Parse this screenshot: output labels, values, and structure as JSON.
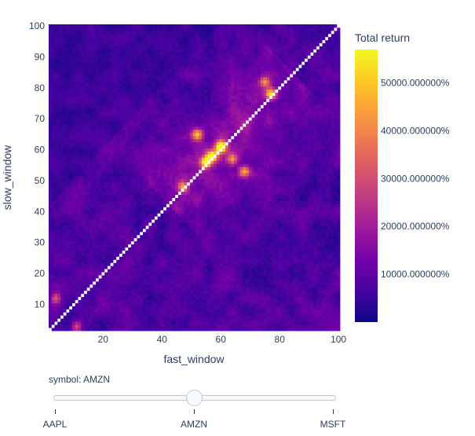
{
  "chart_data": {
    "type": "heatmap",
    "x_label": "fast_window",
    "y_label": "slow_window",
    "x_range": [
      2,
      100
    ],
    "y_range": [
      2,
      100
    ],
    "x_ticks": [
      20,
      40,
      60,
      80,
      100
    ],
    "y_ticks": [
      10,
      20,
      30,
      40,
      50,
      60,
      70,
      80,
      90,
      100
    ],
    "colorbar_title": "Total return",
    "colorbar_ticks": [
      "10000.000000%",
      "20000.000000%",
      "30000.000000%",
      "40000.000000%",
      "50000.000000%"
    ],
    "colorbar_tick_values": [
      10000,
      20000,
      30000,
      40000,
      50000
    ],
    "z_min": 0,
    "z_max": 57000,
    "colorscale": [
      "#0d0887",
      "#46039f",
      "#7201a8",
      "#9c179e",
      "#bd3786",
      "#d8576b",
      "#ed7953",
      "#fb9f3a",
      "#fdca26",
      "#f0f921"
    ],
    "diagonal_color": "#ffffff",
    "approx_hotspots": [
      {
        "fast": 60,
        "slow": 61,
        "value": 57000
      },
      {
        "fast": 55,
        "slow": 56,
        "value": 52000
      },
      {
        "fast": 57,
        "slow": 58,
        "value": 48000
      },
      {
        "fast": 77,
        "slow": 78,
        "value": 45000
      },
      {
        "fast": 52,
        "slow": 65,
        "value": 38000
      },
      {
        "fast": 68,
        "slow": 53,
        "value": 35000
      },
      {
        "fast": 47,
        "slow": 48,
        "value": 30000
      },
      {
        "fast": 75,
        "slow": 82,
        "value": 28000
      },
      {
        "fast": 64,
        "slow": 57,
        "value": 30000
      },
      {
        "fast": 4,
        "slow": 12,
        "value": 25000
      },
      {
        "fast": 11,
        "slow": 3,
        "value": 22000
      }
    ]
  },
  "slider": {
    "label": "symbol: AMZN",
    "steps": [
      "AAPL",
      "AMZN",
      "MSFT"
    ],
    "active_index": 1
  }
}
